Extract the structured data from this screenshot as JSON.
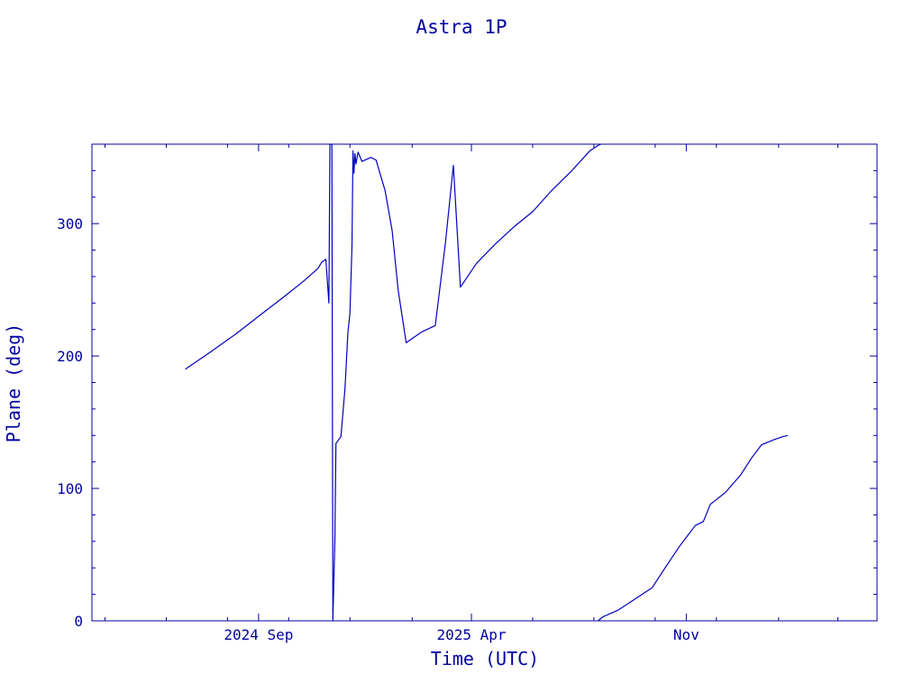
{
  "chart_data": {
    "type": "line",
    "title": "Astra 1P",
    "xlabel": "Time (UTC)",
    "ylabel": "Plane (deg)",
    "ylim": [
      0,
      360
    ],
    "xlim": [
      "2024-03-19",
      "2026-05-10"
    ],
    "yticks": [
      0,
      100,
      200,
      300
    ],
    "ytick_labels": [
      "0",
      "100",
      "200",
      "300"
    ],
    "xticks": [
      "2024-09-01",
      "2025-04-01",
      "2025-11-01"
    ],
    "xtick_labels": [
      "2024 Sep",
      "2025 Apr",
      "Nov"
    ],
    "grid": false,
    "color": "#0000c0",
    "series": [
      {
        "points": [
          [
            "2024-06-20",
            190
          ],
          [
            "2024-07-15",
            203
          ],
          [
            "2024-08-10",
            217
          ],
          [
            "2024-09-01",
            230
          ],
          [
            "2024-09-25",
            244
          ],
          [
            "2024-10-15",
            256
          ],
          [
            "2024-10-30",
            266
          ],
          [
            "2024-11-03",
            271
          ],
          [
            "2024-11-07",
            273
          ],
          [
            "2024-11-10",
            240
          ],
          [
            "2024-11-11",
            362
          ],
          [
            "2024-11-13",
            360
          ],
          [
            "2024-11-14",
            0
          ],
          [
            "2024-11-16",
            60
          ],
          [
            "2024-11-17",
            134
          ],
          [
            "2024-11-22",
            139
          ],
          [
            "2024-11-26",
            175
          ],
          [
            "2024-11-29",
            218
          ],
          [
            "2024-12-01",
            232
          ],
          [
            "2024-12-03",
            283
          ],
          [
            "2024-12-04",
            355
          ],
          [
            "2024-12-05",
            338
          ],
          [
            "2024-12-06",
            353
          ],
          [
            "2024-12-07",
            345
          ],
          [
            "2024-12-09",
            354
          ],
          [
            "2024-12-13",
            347
          ],
          [
            "2024-12-22",
            350
          ],
          [
            "2024-12-27",
            348
          ],
          [
            "2025-01-05",
            325
          ],
          [
            "2025-01-12",
            295
          ],
          [
            "2025-01-18",
            250
          ],
          [
            "2025-01-26",
            210
          ],
          [
            "2025-02-10",
            218
          ],
          [
            "2025-02-24",
            223
          ],
          [
            "2025-03-06",
            285
          ],
          [
            "2025-03-14",
            344
          ],
          [
            "2025-03-21",
            252
          ],
          [
            "2025-04-06",
            270
          ],
          [
            "2025-04-24",
            284
          ],
          [
            "2025-05-14",
            298
          ],
          [
            "2025-06-01",
            309
          ],
          [
            "2025-06-20",
            325
          ],
          [
            "2025-07-10",
            340
          ],
          [
            "2025-07-28",
            355
          ],
          [
            "2025-08-05",
            359
          ],
          [
            "2025-08-08",
            360
          ]
        ]
      },
      {
        "points": [
          [
            "2025-08-05",
            0
          ],
          [
            "2025-08-10",
            3
          ],
          [
            "2025-08-25",
            8
          ],
          [
            "2025-09-10",
            16
          ],
          [
            "2025-09-28",
            25
          ],
          [
            "2025-10-10",
            39
          ],
          [
            "2025-10-25",
            56
          ],
          [
            "2025-11-10",
            72
          ],
          [
            "2025-11-18",
            75
          ],
          [
            "2025-11-25",
            88
          ],
          [
            "2025-12-10",
            97
          ],
          [
            "2025-12-25",
            110
          ],
          [
            "2026-01-05",
            123
          ],
          [
            "2026-01-15",
            133
          ],
          [
            "2026-01-28",
            137
          ],
          [
            "2026-02-05",
            139
          ],
          [
            "2026-02-10",
            140
          ]
        ]
      }
    ]
  }
}
